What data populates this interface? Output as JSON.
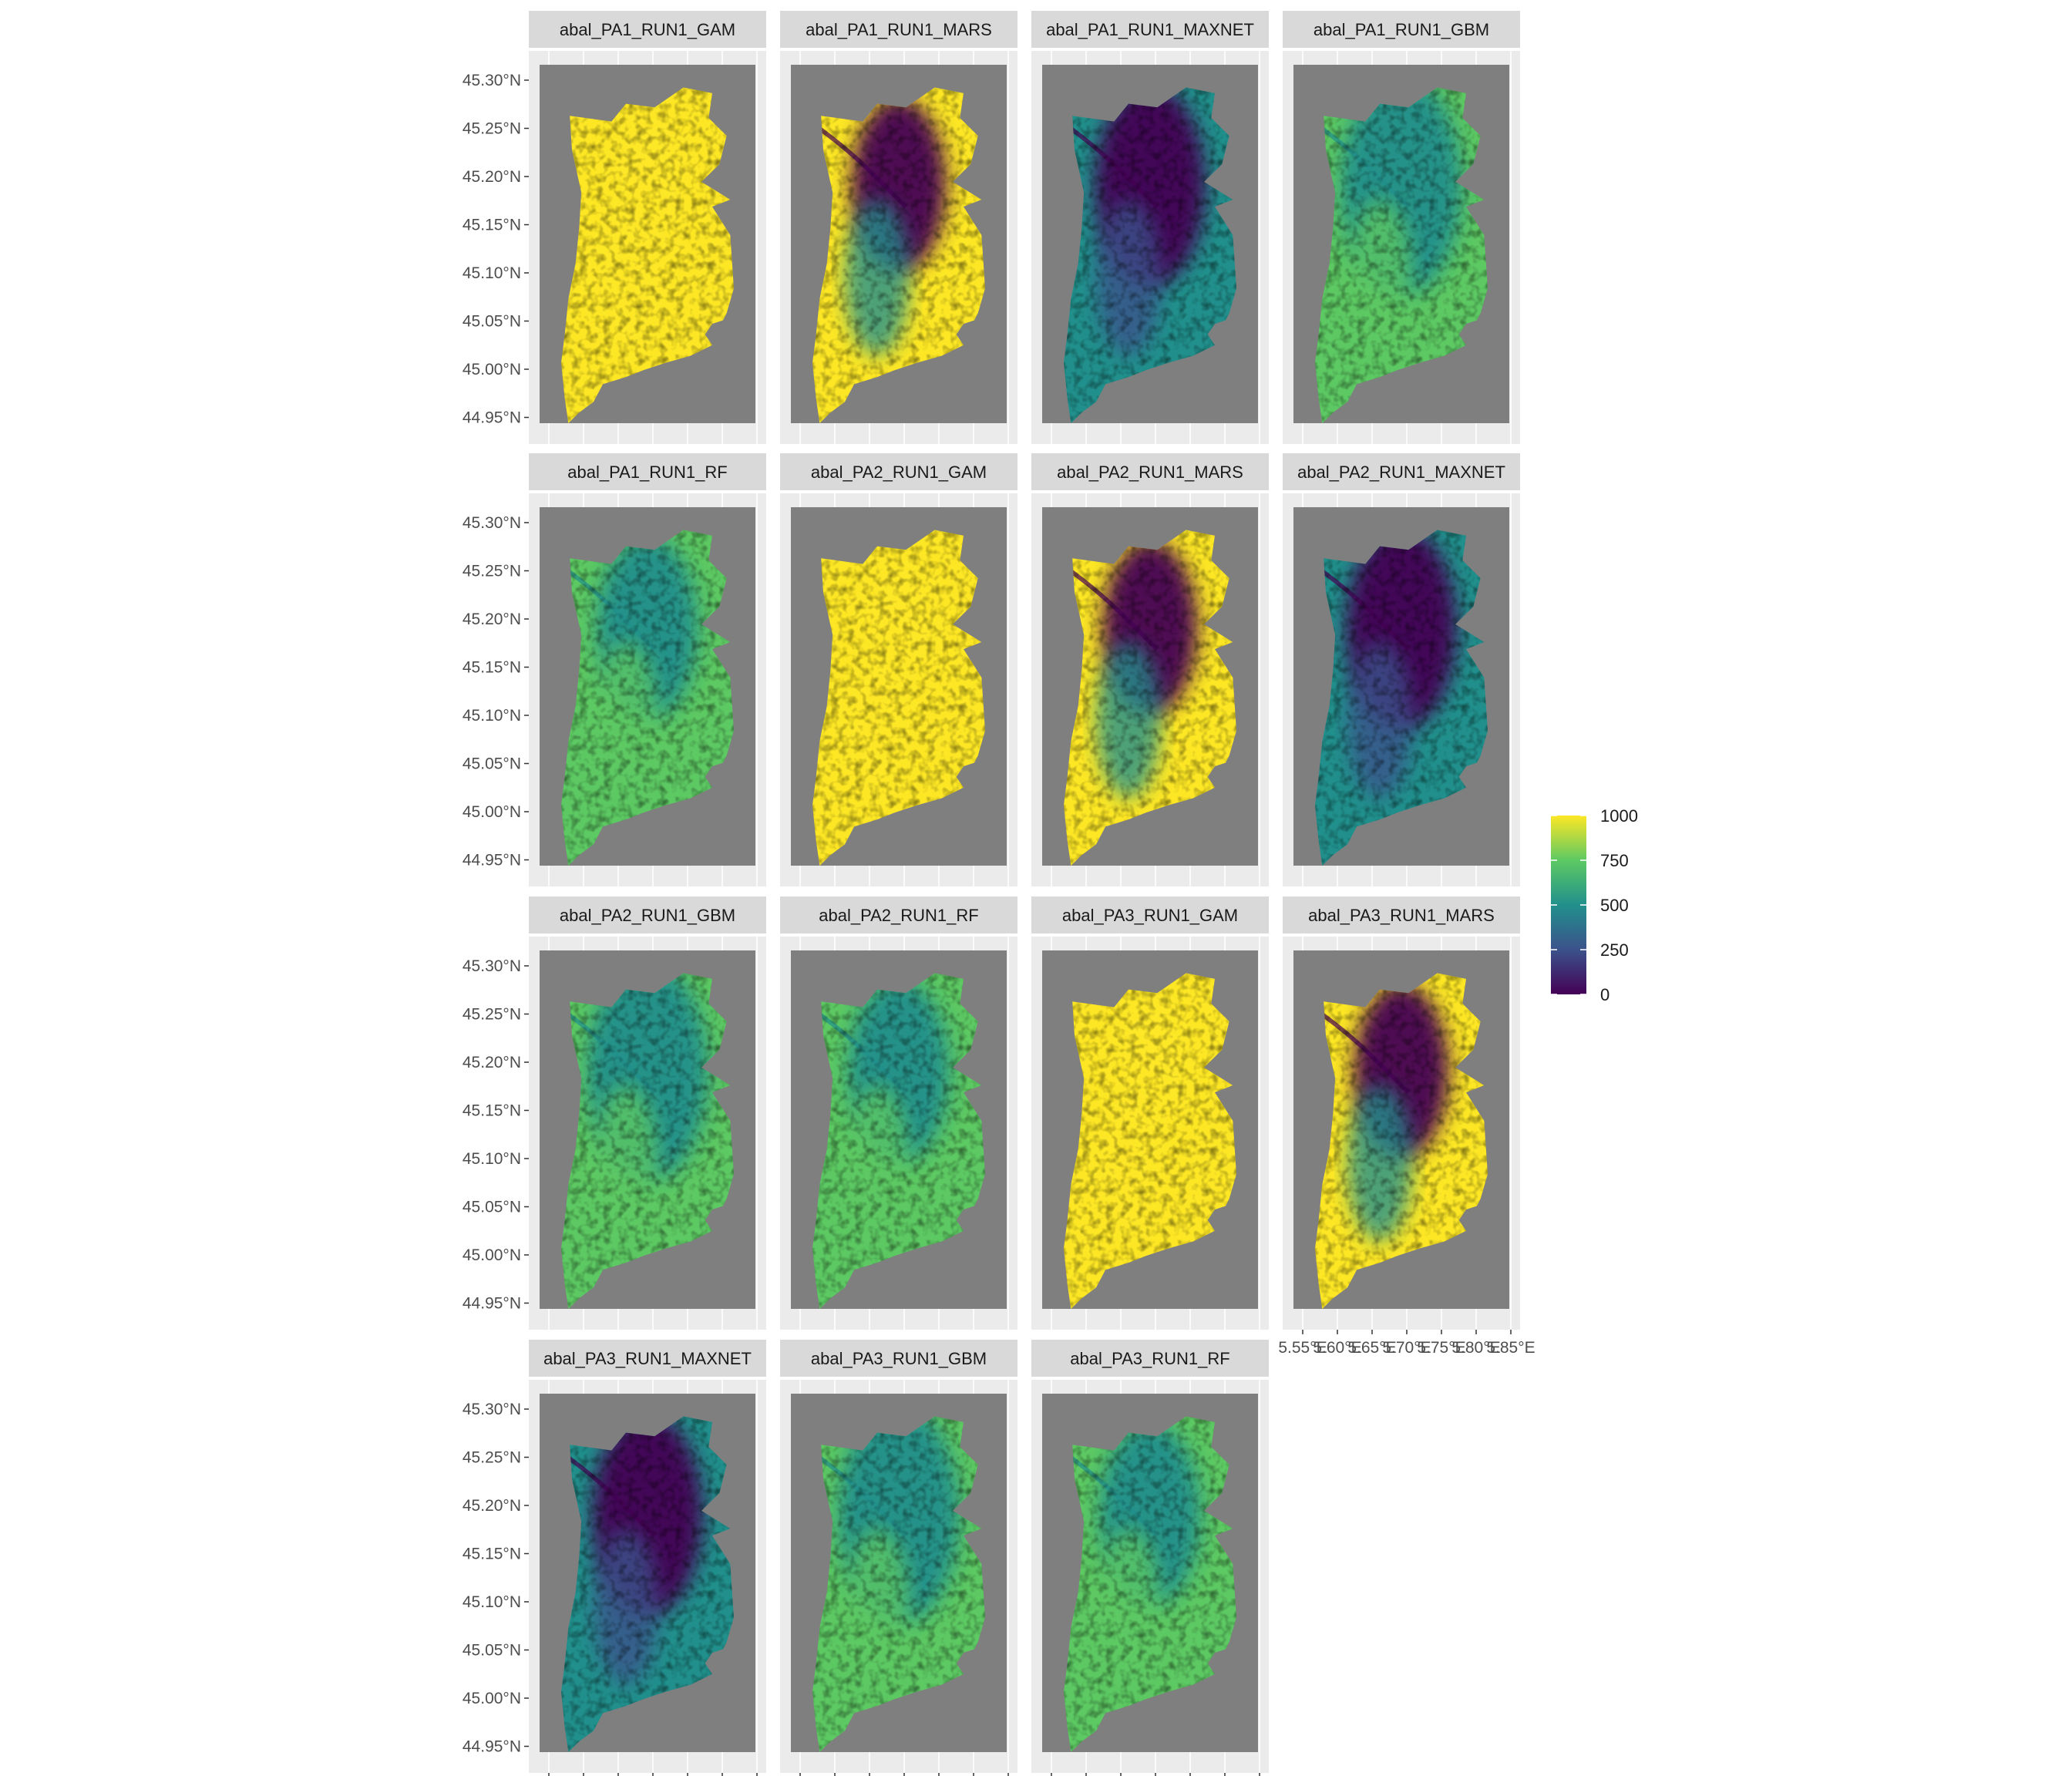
{
  "figure": {
    "panels": [
      {
        "title": "abal_PA1_RUN1_GAM",
        "scheme": "high"
      },
      {
        "title": "abal_PA1_RUN1_MARS",
        "scheme": "mars"
      },
      {
        "title": "abal_PA1_RUN1_MAXNET",
        "scheme": "maxnet"
      },
      {
        "title": "abal_PA1_RUN1_GBM",
        "scheme": "gbm"
      },
      {
        "title": "abal_PA1_RUN1_RF",
        "scheme": "rf"
      },
      {
        "title": "abal_PA2_RUN1_GAM",
        "scheme": "high"
      },
      {
        "title": "abal_PA2_RUN1_MARS",
        "scheme": "mars"
      },
      {
        "title": "abal_PA2_RUN1_MAXNET",
        "scheme": "maxnet"
      },
      {
        "title": "abal_PA2_RUN1_GBM",
        "scheme": "gbm"
      },
      {
        "title": "abal_PA2_RUN1_RF",
        "scheme": "rf"
      },
      {
        "title": "abal_PA3_RUN1_GAM",
        "scheme": "high"
      },
      {
        "title": "abal_PA3_RUN1_MARS",
        "scheme": "mars"
      },
      {
        "title": "abal_PA3_RUN1_MAXNET",
        "scheme": "maxnet"
      },
      {
        "title": "abal_PA3_RUN1_GBM",
        "scheme": "gbm"
      },
      {
        "title": "abal_PA3_RUN1_RF",
        "scheme": "rf"
      }
    ],
    "y_ticks": [
      "45.30°N",
      "45.25°N",
      "45.20°N",
      "45.15°N",
      "45.10°N",
      "45.05°N",
      "45.00°N",
      "44.95°N"
    ],
    "x_ticks": [
      "5.55°E",
      "5.60°E",
      "5.65°E",
      "5.70°E",
      "5.75°E",
      "5.80°E",
      "5.85°E"
    ],
    "x_tick_display": [
      "5.55°E",
      "5.60°E",
      "5.65°E",
      "5.70°E",
      "5.75°E",
      "5.80°E",
      "5.85°E"
    ],
    "legend": {
      "ticks": [
        "1000",
        "750",
        "500",
        "250",
        "0"
      ],
      "range": [
        0,
        1000
      ],
      "palette": "viridis",
      "colors": [
        "#440154",
        "#3b528b",
        "#21908c",
        "#5dc963",
        "#fde725"
      ]
    },
    "background_color": "#7f7f7f",
    "panel_background_color": "#ebebeb",
    "strip_color": "#d9d9d9"
  }
}
